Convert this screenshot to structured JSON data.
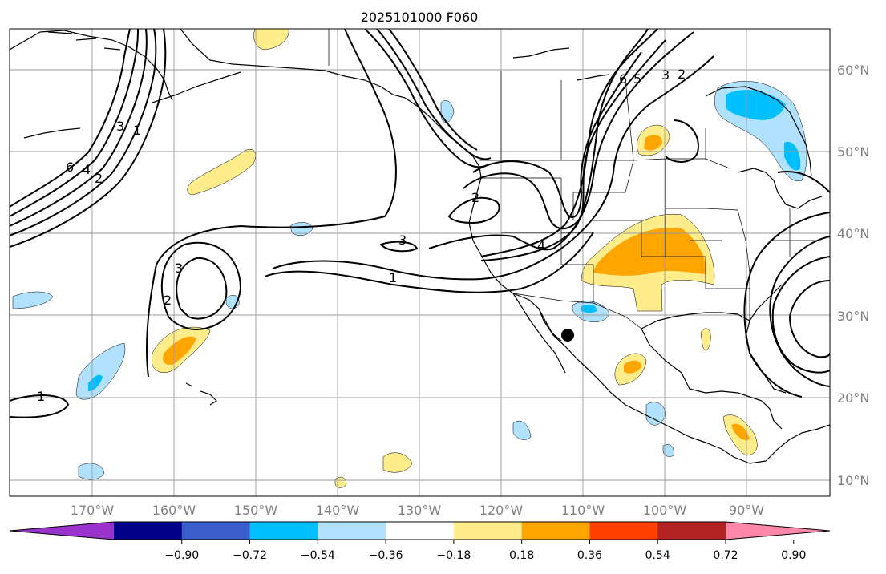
{
  "title": "2025101000 F060",
  "map": {
    "lat_labels": [
      "60°N",
      "50°N",
      "40°N",
      "30°N",
      "20°N",
      "10°N"
    ],
    "lon_labels": [
      "170°W",
      "160°W",
      "150°W",
      "140°W",
      "130°W",
      "120°W",
      "110°W",
      "100°W",
      "90°W"
    ],
    "contour_labels": [
      "6",
      "4",
      "2",
      "3",
      "1",
      "2",
      "3",
      "3",
      "4",
      "2",
      "1",
      "6",
      "5",
      "3",
      "2",
      "1"
    ],
    "marker": "location-dot"
  },
  "colorbar": {
    "ticks": [
      "−0.90",
      "−0.72",
      "−0.54",
      "−0.36",
      "−0.18",
      "0.18",
      "0.36",
      "0.54",
      "0.72",
      "0.90"
    ],
    "colors": [
      "#9933cc",
      "#00008b",
      "#3a5fcd",
      "#00bfff",
      "#b0e2ff",
      "#ffffff",
      "#ffec8b",
      "#ffa500",
      "#ff4000",
      "#b22222",
      "#ff88aa"
    ]
  }
}
